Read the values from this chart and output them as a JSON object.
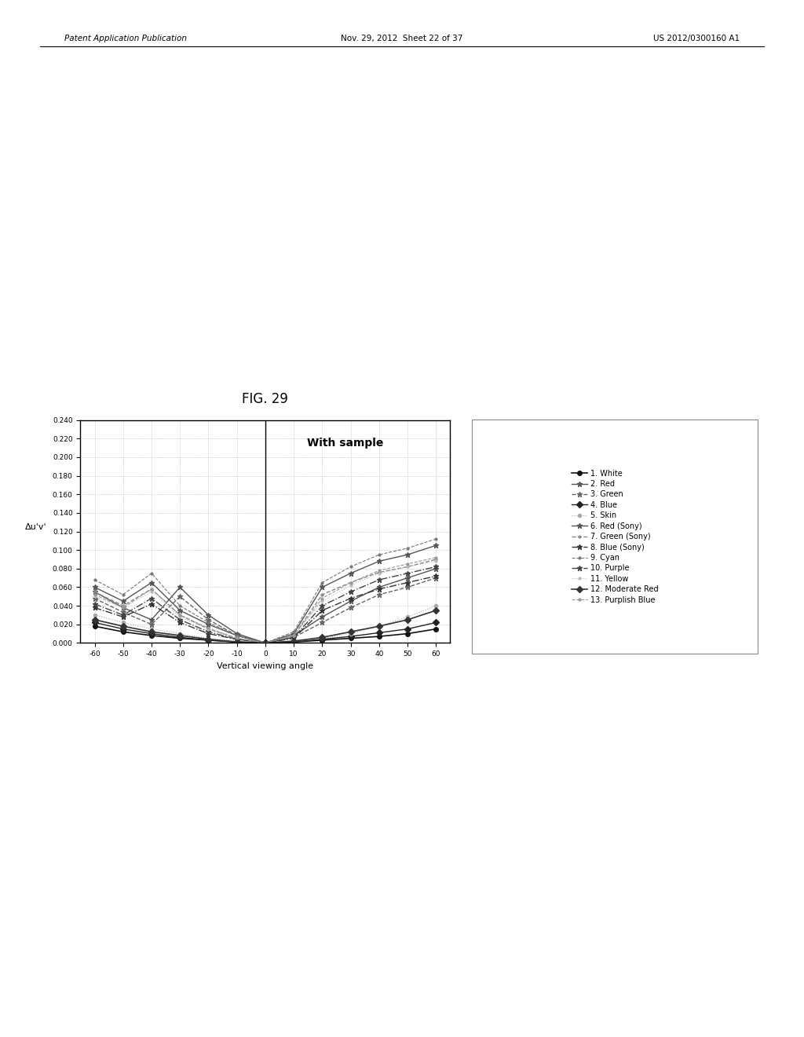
{
  "title": "FIG. 29",
  "ylabel": "Δu'v'",
  "xlabel": "Vertical viewing angle",
  "annotation": "With sample",
  "x_ticks": [
    -60,
    -50,
    -40,
    -30,
    -20,
    -10,
    0,
    10,
    20,
    30,
    40,
    50,
    60
  ],
  "ylim": [
    0.0,
    0.24
  ],
  "xlim": [
    -65,
    65
  ],
  "ytick_values": [
    0.0,
    0.02,
    0.04,
    0.06,
    0.08,
    0.1,
    0.12,
    0.14,
    0.16,
    0.18,
    0.2,
    0.22,
    0.24
  ],
  "header_left": "Patent Application Publication",
  "header_mid": "Nov. 29, 2012  Sheet 22 of 37",
  "header_right": "US 2012/0300160 A1",
  "series": [
    {
      "label": "1. White",
      "color": "#111111",
      "marker": "o",
      "linestyle": "-",
      "linewidth": 1.2,
      "markersize": 4
    },
    {
      "label": "2. Red",
      "color": "#555555",
      "marker": "*",
      "linestyle": "-",
      "linewidth": 1.0,
      "markersize": 5
    },
    {
      "label": "3. Green",
      "color": "#666666",
      "marker": "*",
      "linestyle": "--",
      "linewidth": 1.0,
      "markersize": 5
    },
    {
      "label": "4. Blue",
      "color": "#222222",
      "marker": "D",
      "linestyle": "-",
      "linewidth": 1.0,
      "markersize": 4
    },
    {
      "label": "5. Skin",
      "color": "#aaaaaa",
      "marker": "o",
      "linestyle": ":",
      "linewidth": 0.8,
      "markersize": 3
    },
    {
      "label": "6. Red (Sony)",
      "color": "#555555",
      "marker": "*",
      "linestyle": "-",
      "linewidth": 1.0,
      "markersize": 5
    },
    {
      "label": "7. Green (Sony)",
      "color": "#888888",
      "marker": ".",
      "linestyle": "--",
      "linewidth": 1.0,
      "markersize": 4
    },
    {
      "label": "8. Blue (Sony)",
      "color": "#333333",
      "marker": "*",
      "linestyle": "-.",
      "linewidth": 1.0,
      "markersize": 5
    },
    {
      "label": "9. Cyan",
      "color": "#777777",
      "marker": ".",
      "linestyle": "--",
      "linewidth": 0.8,
      "markersize": 4
    },
    {
      "label": "10. Purple",
      "color": "#444444",
      "marker": "*",
      "linestyle": "-.",
      "linewidth": 1.0,
      "markersize": 5
    },
    {
      "label": "11. Yellow",
      "color": "#bbbbbb",
      "marker": ".",
      "linestyle": ":",
      "linewidth": 0.8,
      "markersize": 4
    },
    {
      "label": "12. Moderate Red",
      "color": "#333333",
      "marker": "D",
      "linestyle": "-",
      "linewidth": 1.2,
      "markersize": 4
    },
    {
      "label": "13. Purplish Blue",
      "color": "#999999",
      "marker": ".",
      "linestyle": "--",
      "linewidth": 0.8,
      "markersize": 4
    }
  ],
  "x_angles": [
    -60,
    -50,
    -40,
    -30,
    -20,
    -10,
    0,
    10,
    20,
    30,
    40,
    50,
    60
  ],
  "data": [
    [
      0.018,
      0.012,
      0.008,
      0.005,
      0.003,
      0.001,
      0.0,
      0.001,
      0.003,
      0.005,
      0.007,
      0.01,
      0.015
    ],
    [
      0.055,
      0.038,
      0.025,
      0.06,
      0.03,
      0.01,
      0.0,
      0.008,
      0.028,
      0.045,
      0.06,
      0.07,
      0.08
    ],
    [
      0.048,
      0.033,
      0.02,
      0.05,
      0.025,
      0.008,
      0.0,
      0.006,
      0.022,
      0.038,
      0.052,
      0.06,
      0.07
    ],
    [
      0.022,
      0.015,
      0.01,
      0.006,
      0.003,
      0.001,
      0.0,
      0.001,
      0.004,
      0.007,
      0.011,
      0.015,
      0.022
    ],
    [
      0.03,
      0.022,
      0.015,
      0.01,
      0.005,
      0.002,
      0.0,
      0.002,
      0.005,
      0.01,
      0.018,
      0.028,
      0.04
    ],
    [
      0.06,
      0.045,
      0.065,
      0.035,
      0.02,
      0.008,
      0.0,
      0.01,
      0.06,
      0.075,
      0.088,
      0.095,
      0.105
    ],
    [
      0.055,
      0.04,
      0.058,
      0.03,
      0.015,
      0.005,
      0.0,
      0.008,
      0.052,
      0.065,
      0.076,
      0.082,
      0.09
    ],
    [
      0.038,
      0.028,
      0.042,
      0.022,
      0.01,
      0.004,
      0.0,
      0.005,
      0.035,
      0.048,
      0.058,
      0.065,
      0.072
    ],
    [
      0.068,
      0.052,
      0.075,
      0.04,
      0.022,
      0.008,
      0.0,
      0.012,
      0.065,
      0.082,
      0.095,
      0.102,
      0.112
    ],
    [
      0.042,
      0.03,
      0.048,
      0.025,
      0.012,
      0.004,
      0.0,
      0.006,
      0.04,
      0.055,
      0.068,
      0.075,
      0.082
    ],
    [
      0.05,
      0.038,
      0.055,
      0.028,
      0.015,
      0.005,
      0.0,
      0.008,
      0.045,
      0.062,
      0.075,
      0.082,
      0.088
    ],
    [
      0.025,
      0.018,
      0.012,
      0.008,
      0.004,
      0.001,
      0.0,
      0.002,
      0.006,
      0.012,
      0.018,
      0.025,
      0.035
    ],
    [
      0.052,
      0.038,
      0.058,
      0.03,
      0.016,
      0.005,
      0.0,
      0.008,
      0.048,
      0.065,
      0.078,
      0.085,
      0.092
    ]
  ]
}
